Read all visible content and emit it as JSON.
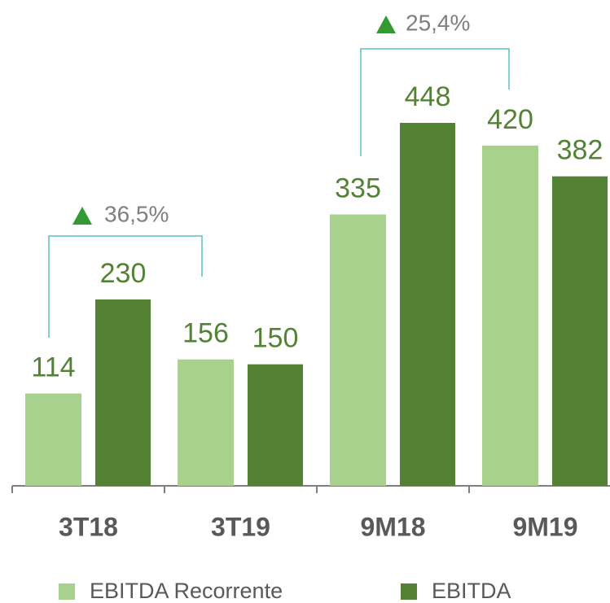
{
  "chart_data": {
    "type": "bar",
    "categories": [
      "3T18",
      "3T19",
      "9M18",
      "9M19"
    ],
    "series": [
      {
        "name": "EBITDA Recorrente",
        "color": "#a9d18e",
        "values": [
          114,
          156,
          335,
          420
        ]
      },
      {
        "name": "EBITDA",
        "color": "#548235",
        "values": [
          230,
          150,
          448,
          382
        ]
      }
    ],
    "ylim": [
      0,
      450
    ],
    "annotations": [
      "36,5%",
      "25,4%"
    ]
  }
}
